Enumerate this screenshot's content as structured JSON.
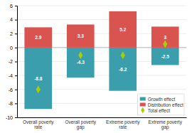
{
  "chart_data": {
    "type": "bar",
    "categories": [
      "Overall poverty\nrate",
      "Overall poverty\ngap",
      "Extreme poverty\nrate",
      "Extreme poverty\ngap"
    ],
    "series": [
      {
        "name": "Growth effect",
        "type": "bar",
        "color": "#3a9eac",
        "values": [
          -8.8,
          -4.3,
          -6.2,
          -2.5
        ],
        "data_labels": true
      },
      {
        "name": "Distribution effect",
        "type": "bar",
        "color": "#d9534f",
        "values": [
          2.9,
          3.3,
          5.2,
          3.0
        ],
        "data_labels": true
      },
      {
        "name": "Total effect",
        "type": "scatter",
        "marker": "diamond",
        "color": "#aacc00",
        "values": [
          -6.0,
          -1.1,
          -1.1,
          0.5
        ]
      }
    ],
    "ylim": [
      -10,
      6
    ],
    "yticks": [
      -10,
      -8,
      -6,
      -4,
      -2,
      0,
      2,
      4,
      6
    ],
    "grid": true,
    "legend": "lower right"
  }
}
